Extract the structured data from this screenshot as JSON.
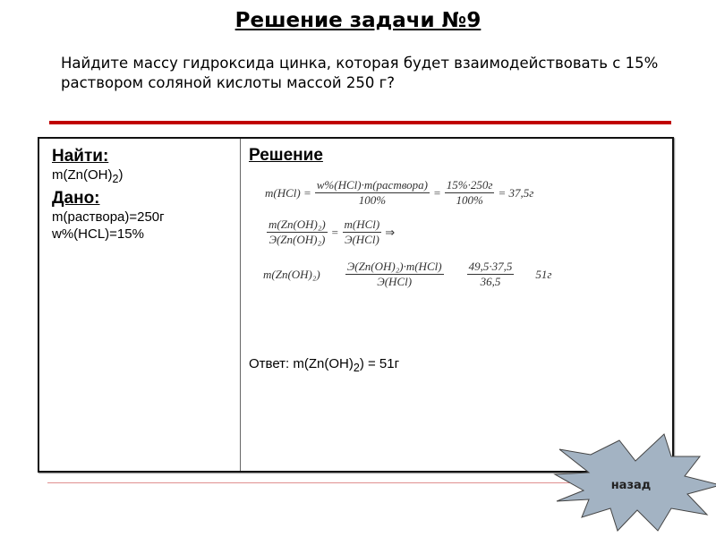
{
  "title": "Решение задачи №9",
  "task": "Найдите массу гидроксида цинка, которая будет взаимодействовать с 15% раствором соляной кислоты массой 250 г?",
  "find": {
    "header": "Найти:",
    "item": "m(Zn(OH)",
    "sub": "2",
    "close": ")"
  },
  "given": {
    "header": "Дано:",
    "items": [
      "m(раствора)=250г",
      "w%(HCL)=15%"
    ]
  },
  "solution": {
    "header": "Решение",
    "f1": {
      "lhs": "m(HCl) =",
      "num1": "w%(HCl)·m(раствора)",
      "den1": "100%",
      "eq": "=",
      "num2": "15%·250г",
      "den2": "100%",
      "res": "= 37,5г"
    },
    "f2": {
      "num1": "m(Zn(OH)₂)",
      "den1": "Э(Zn(OH)₂)",
      "eq": "=",
      "num2": "m(HCl)",
      "den2": "Э(HCl)",
      "arrow": "⇒"
    },
    "f3": {
      "lhs": "m(Zn(OH)₂)",
      "num1": "Э(Zn(OH)₂)·m(HCl)",
      "den1": "Э(HCl)",
      "num2": "49,5·37,5",
      "den2": "36,5",
      "res": "51г"
    },
    "answer": {
      "prefix": "Ответ: m(Zn(OH)",
      "sub": "2",
      "suffix": ") = 51г"
    }
  },
  "back_button": {
    "label": "назад",
    "icon": "starburst",
    "color": "#a3b3c3"
  },
  "colors": {
    "accent_line": "#c00000"
  }
}
